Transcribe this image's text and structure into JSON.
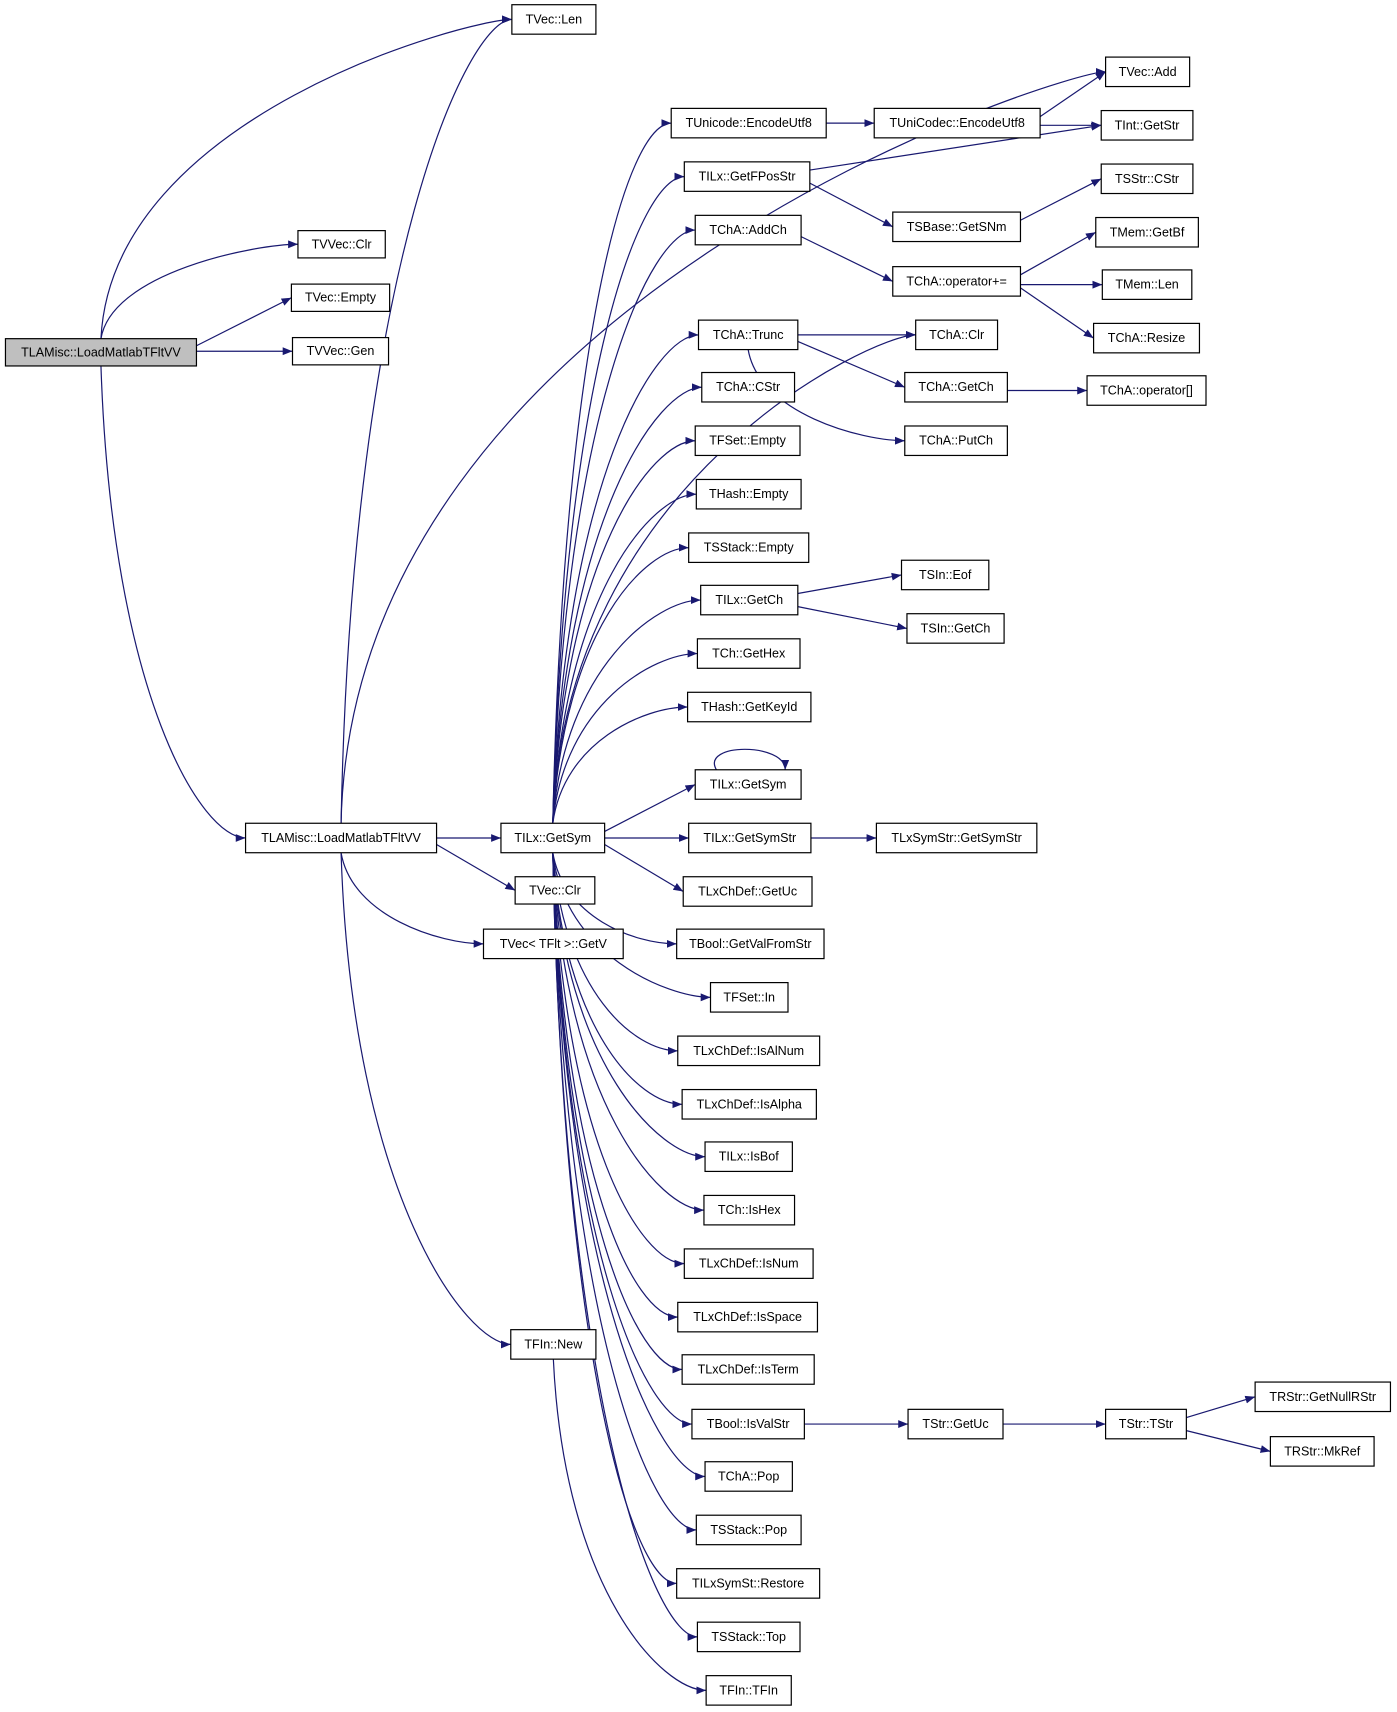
{
  "graph": {
    "edge_color": "#191970",
    "root_fill": "#bfbfbf",
    "nodes": [
      "TLAMisc::LoadMatlabTFltVV",
      "TVVec::Clr",
      "TVec::Empty",
      "TVVec::Gen",
      "TVec::Len",
      "TLAMisc::LoadMatlabTFltVV",
      "TILx::GetSym",
      "TVec::Clr",
      "TVec< TFlt >::GetV",
      "TFIn::New",
      "TVec::Add",
      "TUnicode::EncodeUtf8",
      "TUniCodec::EncodeUtf8",
      "TInt::GetStr",
      "TILx::GetFPosStr",
      "TSStr::CStr",
      "TSBase::GetSNm",
      "TChA::AddCh",
      "TMem::GetBf",
      "TChA::operator+=",
      "TMem::Len",
      "TChA::Resize",
      "TChA::Clr",
      "TChA::Trunc",
      "TChA::GetCh",
      "TChA::operator[]",
      "TChA::CStr",
      "TChA::PutCh",
      "TFSet::Empty",
      "THash::Empty",
      "TSStack::Empty",
      "TILx::GetCh",
      "TSIn::Eof",
      "TSIn::GetCh",
      "TCh::GetHex",
      "THash::GetKeyId",
      "TILx::GetSym",
      "TILx::GetSymStr",
      "TLxSymStr::GetSymStr",
      "TLxChDef::GetUc",
      "TBool::GetValFromStr",
      "TFSet::In",
      "TLxChDef::IsAlNum",
      "TLxChDef::IsAlpha",
      "TILx::IsBof",
      "TCh::IsHex",
      "TLxChDef::IsNum",
      "TLxChDef::IsSpace",
      "TLxChDef::IsTerm",
      "TBool::IsValStr",
      "TStr::GetUc",
      "TStr::TStr",
      "TRStr::GetNullRStr",
      "TRStr::MkRef",
      "TChA::Pop",
      "TSStack::Pop",
      "TILxSymSt::Restore",
      "TSStack::Top",
      "TFIn::TFIn"
    ],
    "edges": [
      [
        0,
        1
      ],
      [
        0,
        2
      ],
      [
        0,
        3
      ],
      [
        0,
        4
      ],
      [
        0,
        5
      ],
      [
        5,
        4
      ],
      [
        5,
        10
      ],
      [
        5,
        6
      ],
      [
        5,
        7
      ],
      [
        5,
        8
      ],
      [
        5,
        9
      ],
      [
        6,
        11
      ],
      [
        6,
        14
      ],
      [
        6,
        17
      ],
      [
        6,
        22
      ],
      [
        6,
        23
      ],
      [
        6,
        26
      ],
      [
        6,
        28
      ],
      [
        6,
        29
      ],
      [
        6,
        30
      ],
      [
        6,
        31
      ],
      [
        6,
        34
      ],
      [
        6,
        35
      ],
      [
        6,
        36
      ],
      [
        6,
        37
      ],
      [
        6,
        39
      ],
      [
        6,
        40
      ],
      [
        6,
        41
      ],
      [
        6,
        42
      ],
      [
        6,
        43
      ],
      [
        6,
        44
      ],
      [
        6,
        45
      ],
      [
        6,
        46
      ],
      [
        6,
        47
      ],
      [
        6,
        48
      ],
      [
        6,
        49
      ],
      [
        6,
        54
      ],
      [
        6,
        55
      ],
      [
        6,
        56
      ],
      [
        6,
        57
      ],
      [
        9,
        58
      ],
      [
        11,
        12
      ],
      [
        12,
        10
      ],
      [
        12,
        13
      ],
      [
        14,
        13
      ],
      [
        14,
        16
      ],
      [
        16,
        15
      ],
      [
        17,
        19
      ],
      [
        19,
        18
      ],
      [
        19,
        20
      ],
      [
        19,
        21
      ],
      [
        23,
        22
      ],
      [
        23,
        24
      ],
      [
        23,
        27
      ],
      [
        24,
        25
      ],
      [
        31,
        32
      ],
      [
        31,
        33
      ],
      [
        36,
        36
      ],
      [
        37,
        38
      ],
      [
        49,
        50
      ],
      [
        50,
        51
      ],
      [
        51,
        52
      ],
      [
        51,
        53
      ]
    ]
  }
}
